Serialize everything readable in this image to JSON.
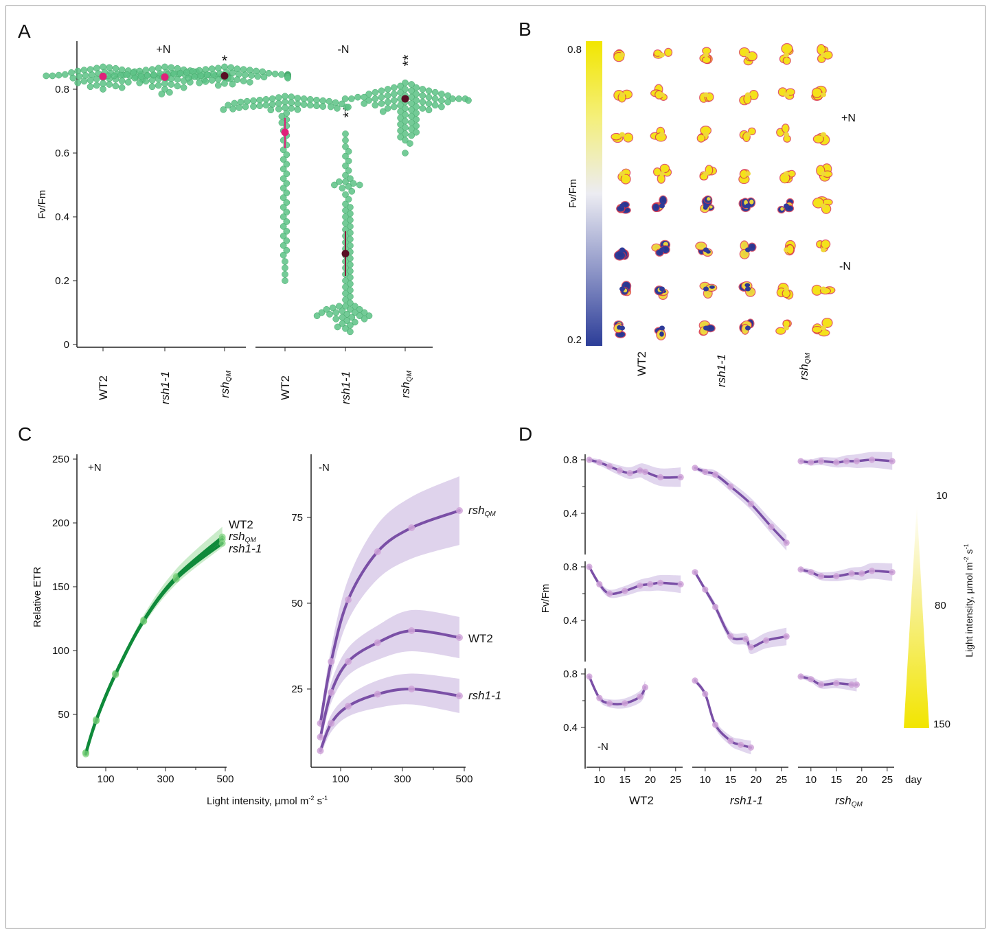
{
  "colors": {
    "dot_green": "#5cc285",
    "mean_pink": "#e0207a",
    "mean_dark": "#5a0f25",
    "line_green": "#0f8a3a",
    "line_purple": "#7a4fa6",
    "ribbon_purple": "#c9b5e0",
    "point_purple": "#cfa3d8",
    "cbar_high": "#f0e400",
    "cbar_low": "#2e3f99"
  },
  "panelA": {
    "letter": "A",
    "ylabel": "Fv/Fm",
    "group_labels": [
      "+N",
      "-N"
    ],
    "sig_marks": [
      "*",
      "**",
      "**"
    ]
  },
  "panelB": {
    "letter": "B",
    "cbar_label": "Fv/Fm",
    "cbar_top": "0.8",
    "cbar_bottom": "0.2",
    "row_labels": [
      "+N",
      "-N"
    ],
    "col_labels": [
      "WT2",
      "rsh1-1",
      "rsh"
    ],
    "col_subscript": "QM"
  },
  "panelC": {
    "letter": "C",
    "ylabel": "Relative ETR",
    "xlabel_main": "Light intensity, µmol m",
    "xlabel_sup1": "-2",
    "xlabel_mid": " s",
    "xlabel_sup2": "-1",
    "left_tag": "+N",
    "right_tag": "-N",
    "left_series_labels": [
      "WT2",
      "rsh",
      "rsh1-1"
    ],
    "right_series_labels": [
      "rsh",
      "WT2",
      "rsh1-1"
    ],
    "qm_sub": "QM"
  },
  "panelD": {
    "letter": "D",
    "ylabel": "Fv/Fm",
    "tag": "-N",
    "x_unit": "day",
    "col_labels": [
      "WT2",
      "rsh1-1",
      "rsh"
    ],
    "qm_sub": "QM",
    "legend_title_main": "Light intensity, µmol m",
    "legend_sup1": "-2",
    "legend_mid": " s",
    "legend_sup2": "-1",
    "legend_ticks": [
      "10",
      "80",
      "150"
    ]
  },
  "chart_data": [
    {
      "panel": "A",
      "type": "scatter",
      "chart_form": "beeswarm",
      "ylabel": "Fv/Fm",
      "ylim": [
        0,
        0.88
      ],
      "yticks": [
        0,
        0.2,
        0.4,
        0.6,
        0.8
      ],
      "categories": [
        "WT2",
        "rsh1-1",
        "rshQM",
        "WT2",
        "rsh1-1",
        "rshQM"
      ],
      "groups": [
        "+N",
        "+N",
        "+N",
        "-N",
        "-N",
        "-N"
      ],
      "means": [
        0.84,
        0.838,
        0.842,
        0.665,
        0.285,
        0.77
      ],
      "ci": [
        [
          0.835,
          0.845
        ],
        [
          0.833,
          0.843
        ],
        [
          0.838,
          0.846
        ],
        [
          0.615,
          0.71
        ],
        [
          0.215,
          0.355
        ],
        [
          0.76,
          0.78
        ]
      ],
      "significance": [
        "",
        "",
        "*",
        "",
        "**",
        "**"
      ],
      "values": [
        [
          0.84,
          0.84,
          0.84,
          0.84,
          0.84,
          0.84,
          0.84,
          0.84,
          0.84,
          0.84,
          0.841,
          0.841,
          0.841,
          0.839,
          0.839,
          0.839,
          0.842,
          0.842,
          0.842,
          0.838,
          0.838,
          0.843,
          0.843,
          0.837,
          0.837,
          0.836,
          0.844,
          0.844,
          0.835,
          0.845,
          0.834,
          0.846,
          0.833,
          0.847,
          0.832,
          0.83,
          0.828,
          0.825,
          0.82,
          0.815,
          0.81,
          0.848,
          0.85,
          0.852,
          0.855,
          0.858,
          0.86,
          0.862,
          0.865,
          0.868,
          0.87,
          0.805,
          0.8,
          0.84,
          0.84,
          0.84,
          0.84,
          0.84,
          0.84,
          0.841,
          0.839,
          0.838,
          0.842,
          0.836,
          0.844,
          0.831,
          0.849,
          0.826,
          0.853,
          0.822,
          0.857,
          0.818,
          0.861,
          0.812,
          0.866,
          0.808,
          0.84,
          0.839,
          0.841,
          0.84
        ],
        [
          0.84,
          0.84,
          0.84,
          0.84,
          0.84,
          0.84,
          0.84,
          0.84,
          0.84,
          0.84,
          0.841,
          0.841,
          0.841,
          0.839,
          0.839,
          0.839,
          0.842,
          0.842,
          0.842,
          0.838,
          0.838,
          0.843,
          0.843,
          0.837,
          0.837,
          0.836,
          0.844,
          0.844,
          0.835,
          0.845,
          0.834,
          0.846,
          0.833,
          0.847,
          0.832,
          0.83,
          0.828,
          0.825,
          0.82,
          0.815,
          0.81,
          0.848,
          0.85,
          0.852,
          0.855,
          0.858,
          0.86,
          0.862,
          0.865,
          0.868,
          0.87,
          0.805,
          0.8,
          0.79,
          0.785,
          0.84,
          0.84,
          0.84,
          0.84,
          0.841,
          0.839,
          0.838,
          0.842,
          0.836,
          0.844,
          0.831,
          0.849,
          0.826,
          0.853,
          0.822,
          0.857,
          0.818,
          0.861,
          0.812,
          0.866,
          0.808,
          0.84,
          0.839,
          0.841,
          0.84
        ],
        [
          0.843,
          0.843,
          0.843,
          0.843,
          0.843,
          0.843,
          0.843,
          0.843,
          0.843,
          0.843,
          0.844,
          0.844,
          0.844,
          0.842,
          0.842,
          0.842,
          0.845,
          0.845,
          0.845,
          0.841,
          0.841,
          0.846,
          0.846,
          0.84,
          0.84,
          0.839,
          0.847,
          0.847,
          0.838,
          0.848,
          0.837,
          0.849,
          0.836,
          0.85,
          0.835,
          0.833,
          0.83,
          0.826,
          0.822,
          0.818,
          0.812,
          0.851,
          0.853,
          0.855,
          0.857,
          0.86,
          0.862,
          0.864,
          0.866,
          0.868,
          0.87,
          0.843,
          0.843,
          0.843,
          0.843,
          0.843,
          0.844,
          0.842,
          0.841,
          0.845,
          0.84,
          0.846,
          0.838,
          0.848,
          0.835,
          0.85,
          0.831,
          0.853,
          0.828,
          0.856,
          0.824,
          0.859,
          0.82,
          0.862,
          0.816,
          0.864,
          0.843,
          0.842,
          0.844,
          0.843
        ],
        [
          0.77,
          0.768,
          0.766,
          0.764,
          0.762,
          0.76,
          0.758,
          0.756,
          0.754,
          0.752,
          0.75,
          0.748,
          0.746,
          0.744,
          0.742,
          0.74,
          0.738,
          0.736,
          0.772,
          0.774,
          0.776,
          0.778,
          0.77,
          0.768,
          0.766,
          0.764,
          0.762,
          0.76,
          0.758,
          0.756,
          0.754,
          0.752,
          0.75,
          0.748,
          0.746,
          0.744,
          0.742,
          0.74,
          0.738,
          0.736,
          0.725,
          0.715,
          0.705,
          0.695,
          0.685,
          0.67,
          0.655,
          0.64,
          0.625,
          0.61,
          0.595,
          0.58,
          0.565,
          0.55,
          0.535,
          0.52,
          0.505,
          0.49,
          0.475,
          0.46,
          0.445,
          0.43,
          0.415,
          0.4,
          0.385,
          0.37,
          0.355,
          0.34,
          0.325,
          0.31,
          0.295,
          0.28,
          0.26,
          0.24,
          0.22,
          0.2,
          0.75,
          0.745,
          0.735,
          0.745
        ],
        [
          0.66,
          0.64,
          0.62,
          0.605,
          0.59,
          0.575,
          0.56,
          0.545,
          0.53,
          0.52,
          0.51,
          0.505,
          0.5,
          0.495,
          0.49,
          0.48,
          0.47,
          0.455,
          0.44,
          0.43,
          0.42,
          0.41,
          0.4,
          0.39,
          0.38,
          0.37,
          0.36,
          0.35,
          0.34,
          0.33,
          0.32,
          0.31,
          0.3,
          0.29,
          0.28,
          0.27,
          0.26,
          0.25,
          0.24,
          0.23,
          0.22,
          0.21,
          0.2,
          0.19,
          0.18,
          0.17,
          0.16,
          0.15,
          0.14,
          0.13,
          0.12,
          0.12,
          0.115,
          0.11,
          0.11,
          0.105,
          0.1,
          0.1,
          0.1,
          0.095,
          0.095,
          0.09,
          0.09,
          0.085,
          0.085,
          0.08,
          0.08,
          0.075,
          0.07,
          0.065,
          0.06,
          0.055,
          0.05,
          0.04,
          0.12,
          0.11,
          0.1,
          0.09,
          0.5,
          0.51
        ],
        [
          0.77,
          0.77,
          0.77,
          0.77,
          0.77,
          0.77,
          0.775,
          0.775,
          0.775,
          0.775,
          0.765,
          0.765,
          0.765,
          0.765,
          0.78,
          0.78,
          0.78,
          0.76,
          0.76,
          0.76,
          0.785,
          0.785,
          0.785,
          0.755,
          0.755,
          0.755,
          0.79,
          0.79,
          0.75,
          0.75,
          0.795,
          0.795,
          0.745,
          0.745,
          0.8,
          0.8,
          0.74,
          0.74,
          0.805,
          0.805,
          0.735,
          0.735,
          0.81,
          0.73,
          0.73,
          0.815,
          0.725,
          0.72,
          0.82,
          0.715,
          0.71,
          0.705,
          0.7,
          0.695,
          0.69,
          0.685,
          0.68,
          0.675,
          0.67,
          0.665,
          0.66,
          0.655,
          0.65,
          0.64,
          0.63,
          0.6,
          0.77,
          0.77,
          0.775,
          0.765,
          0.78,
          0.76,
          0.785,
          0.755,
          0.79,
          0.75,
          0.795,
          0.745,
          0.8,
          0.74
        ]
      ]
    },
    {
      "panel": "C",
      "subpanel": "+N",
      "type": "line",
      "xlabel": "Light intensity, µmol m-2 s-1",
      "ylabel": "Relative ETR",
      "xlim": [
        0,
        500
      ],
      "ylim": [
        10,
        255
      ],
      "xticks": [
        100,
        300,
        500
      ],
      "yticks": [
        50,
        100,
        150,
        200,
        250
      ],
      "x": [
        30,
        65,
        130,
        225,
        335,
        490
      ],
      "series": [
        {
          "name": "WT2",
          "values": [
            20,
            45,
            82,
            124,
            158,
            189
          ]
        },
        {
          "name": "rshQM",
          "values": [
            20,
            46,
            82,
            123,
            157,
            187
          ]
        },
        {
          "name": "rsh1-1",
          "values": [
            19,
            45,
            81,
            123,
            156,
            184
          ]
        }
      ]
    },
    {
      "panel": "C",
      "subpanel": "-N",
      "type": "line",
      "xlim": [
        0,
        500
      ],
      "ylim": [
        4,
        92
      ],
      "xticks": [
        100,
        300,
        500
      ],
      "yticks": [
        25,
        50,
        75
      ],
      "x": [
        30,
        65,
        120,
        215,
        325,
        480
      ],
      "series": [
        {
          "name": "rshQM",
          "values": [
            15,
            33,
            51,
            65,
            72,
            77
          ]
        },
        {
          "name": "WT2",
          "values": [
            11,
            24,
            33,
            38.5,
            42,
            40
          ]
        },
        {
          "name": "rsh1-1",
          "values": [
            7,
            15,
            20,
            23.5,
            25,
            23
          ]
        }
      ]
    },
    {
      "panel": "D",
      "type": "line",
      "ylabel": "Fv/Fm",
      "x_unit": "day",
      "xticks": [
        10,
        15,
        20,
        25
      ],
      "yticks": [
        0.4,
        0.8
      ],
      "rows_light_intensity": [
        10,
        80,
        150
      ],
      "legend_ticks": [
        10,
        80,
        150
      ],
      "panels": [
        {
          "genotype": "WT2",
          "light": 10,
          "x": [
            8,
            10,
            12,
            14,
            16,
            18,
            19,
            22,
            26
          ],
          "values": [
            0.8,
            0.78,
            0.75,
            0.72,
            0.7,
            0.72,
            0.71,
            0.67,
            0.67
          ]
        },
        {
          "genotype": "rsh1-1",
          "light": 10,
          "x": [
            8,
            10,
            12,
            15,
            19,
            23,
            26
          ],
          "values": [
            0.74,
            0.71,
            0.69,
            0.6,
            0.47,
            0.3,
            0.18
          ]
        },
        {
          "genotype": "rshQM",
          "light": 10,
          "x": [
            8,
            10,
            12,
            15,
            17,
            19,
            22,
            26
          ],
          "values": [
            0.79,
            0.78,
            0.79,
            0.78,
            0.79,
            0.79,
            0.8,
            0.79
          ]
        },
        {
          "genotype": "WT2",
          "light": 80,
          "x": [
            8,
            10,
            12,
            15,
            18,
            20,
            22,
            26
          ],
          "values": [
            0.8,
            0.67,
            0.6,
            0.62,
            0.66,
            0.67,
            0.68,
            0.67
          ]
        },
        {
          "genotype": "rsh1-1",
          "light": 80,
          "x": [
            8,
            10,
            12,
            15,
            18,
            19,
            22,
            26
          ],
          "values": [
            0.76,
            0.63,
            0.5,
            0.28,
            0.26,
            0.2,
            0.25,
            0.28
          ]
        },
        {
          "genotype": "rshQM",
          "light": 80,
          "x": [
            8,
            10,
            12,
            15,
            18,
            20,
            22,
            26
          ],
          "values": [
            0.78,
            0.76,
            0.73,
            0.73,
            0.75,
            0.75,
            0.77,
            0.76
          ]
        },
        {
          "genotype": "WT2",
          "light": 150,
          "x": [
            8,
            10,
            12,
            15,
            18,
            19
          ],
          "values": [
            0.78,
            0.62,
            0.58,
            0.58,
            0.63,
            0.7
          ]
        },
        {
          "genotype": "rsh1-1",
          "light": 150,
          "x": [
            8,
            10,
            12,
            15,
            17,
            19
          ],
          "values": [
            0.75,
            0.65,
            0.42,
            0.3,
            0.27,
            0.25
          ]
        },
        {
          "genotype": "rshQM",
          "light": 150,
          "x": [
            8,
            10,
            12,
            15,
            18,
            19
          ],
          "values": [
            0.78,
            0.76,
            0.72,
            0.73,
            0.72,
            0.72
          ]
        }
      ]
    }
  ]
}
